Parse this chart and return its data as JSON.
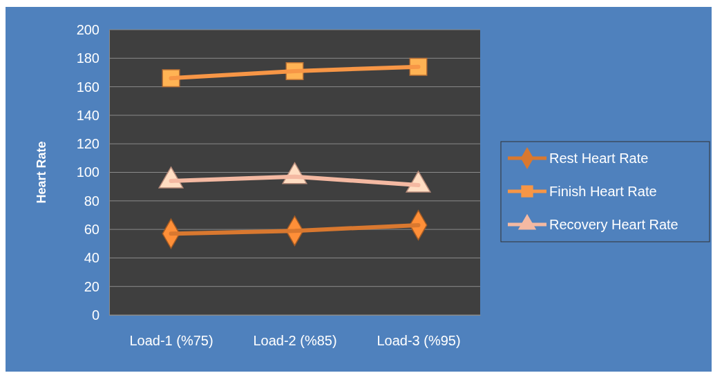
{
  "chart_data": {
    "type": "line",
    "ylabel": "Heart Rate",
    "categories": [
      "Load-1 (%75)",
      "Load-2 (%85)",
      "Load-3 (%95)"
    ],
    "series": [
      {
        "name": "Rest Heart Rate",
        "color": "#d9782f",
        "values": [
          57,
          59,
          63
        ],
        "marker": "diamond"
      },
      {
        "name": "Finish Heart Rate",
        "color": "#f79646",
        "values": [
          166,
          171,
          174
        ],
        "marker": "square"
      },
      {
        "name": "Recovery Heart Rate",
        "color": "#f4b9a2",
        "values": [
          94,
          97,
          91
        ],
        "marker": "triangle"
      }
    ],
    "ylim": [
      0,
      200
    ],
    "yticks": [
      0,
      20,
      40,
      60,
      80,
      100,
      120,
      140,
      160,
      180,
      200
    ],
    "grid": "y",
    "legend": "right"
  }
}
